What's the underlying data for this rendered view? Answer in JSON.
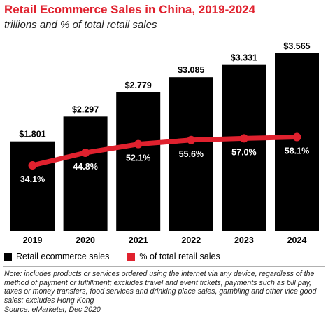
{
  "title": "Retail Ecommerce Sales in China, 2019-2024",
  "subtitle": "trillions and % of total retail sales",
  "colors": {
    "bars": "#000000",
    "line": "#e0212e",
    "title": "#e0212e"
  },
  "legend": {
    "sales_label": "Retail ecommerce sales",
    "pct_label": "% of total retail sales"
  },
  "note": "Note: includes products or services ordered using the internet via any device, regardless of the method of payment or fulfillment; excludes travel and event tickets, payments such as bill pay, taxes or money transfers, food services and drinking place sales, gambling and other vice good sales; excludes Hong Kong",
  "source": "Source: eMarketer, Dec 2020",
  "chart_data": {
    "type": "bar",
    "categories": [
      "2019",
      "2020",
      "2021",
      "2022",
      "2023",
      "2024"
    ],
    "series": [
      {
        "name": "Retail ecommerce sales",
        "type": "bar",
        "values": [
          1.801,
          2.297,
          2.779,
          3.085,
          3.331,
          3.565
        ],
        "labels": [
          "$1.801",
          "$2.297",
          "$2.779",
          "$3.085",
          "$3.331",
          "$3.565"
        ]
      },
      {
        "name": "% of total retail sales",
        "type": "line",
        "values": [
          34.1,
          44.8,
          52.1,
          55.6,
          57.0,
          58.1
        ],
        "labels": [
          "34.1%",
          "44.8%",
          "52.1%",
          "55.6%",
          "57.0%",
          "58.1%"
        ]
      }
    ],
    "legend_position": "bottom-left",
    "grid": false
  }
}
